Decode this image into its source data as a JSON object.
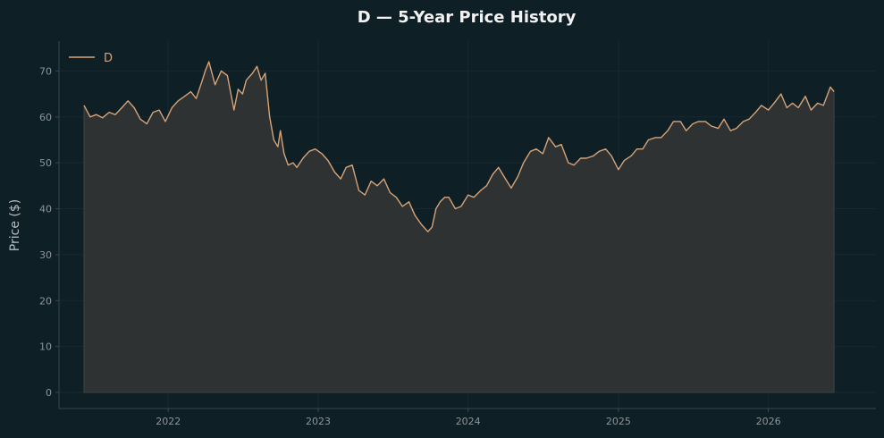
{
  "chart_data": {
    "type": "area",
    "title": "D — 5-Year Price History",
    "xlabel": "",
    "ylabel": "Price ($)",
    "x_ticks": [
      "2022",
      "2023",
      "2024",
      "2025",
      "2026"
    ],
    "y_ticks": [
      0,
      10,
      20,
      30,
      40,
      50,
      60,
      70
    ],
    "ylim": [
      -3.5,
      76.5
    ],
    "xlim": [
      "2021-04-10",
      "2026-09-20"
    ],
    "grid": true,
    "legend_position": "top-left",
    "colors": {
      "line": "#d6a377",
      "fill": "#2e3232",
      "background": "#0f1f26",
      "axis": "#3a474d"
    },
    "series": [
      {
        "name": "D",
        "x": [
          "2021-06-10",
          "2021-06-25",
          "2021-07-10",
          "2021-07-25",
          "2021-08-10",
          "2021-08-25",
          "2021-09-10",
          "2021-09-25",
          "2021-10-10",
          "2021-10-25",
          "2021-11-10",
          "2021-11-25",
          "2021-12-10",
          "2021-12-25",
          "2022-01-10",
          "2022-01-25",
          "2022-02-10",
          "2022-02-25",
          "2022-03-10",
          "2022-03-25",
          "2022-04-01",
          "2022-04-10",
          "2022-04-25",
          "2022-05-10",
          "2022-05-25",
          "2022-06-10",
          "2022-06-20",
          "2022-07-01",
          "2022-07-10",
          "2022-07-25",
          "2022-08-05",
          "2022-08-15",
          "2022-08-25",
          "2022-09-05",
          "2022-09-15",
          "2022-09-25",
          "2022-10-01",
          "2022-10-10",
          "2022-10-20",
          "2022-11-01",
          "2022-11-10",
          "2022-11-25",
          "2022-12-10",
          "2022-12-25",
          "2023-01-10",
          "2023-01-25",
          "2023-02-10",
          "2023-02-25",
          "2023-03-10",
          "2023-03-25",
          "2023-04-10",
          "2023-04-25",
          "2023-05-10",
          "2023-05-25",
          "2023-06-10",
          "2023-06-25",
          "2023-07-10",
          "2023-07-25",
          "2023-08-10",
          "2023-08-25",
          "2023-09-10",
          "2023-09-25",
          "2023-10-05",
          "2023-10-15",
          "2023-10-25",
          "2023-11-05",
          "2023-11-15",
          "2023-12-01",
          "2023-12-15",
          "2024-01-01",
          "2024-01-15",
          "2024-02-01",
          "2024-02-15",
          "2024-03-01",
          "2024-03-15",
          "2024-04-01",
          "2024-04-15",
          "2024-05-01",
          "2024-05-15",
          "2024-06-01",
          "2024-06-15",
          "2024-07-01",
          "2024-07-15",
          "2024-08-01",
          "2024-08-15",
          "2024-09-01",
          "2024-09-15",
          "2024-10-01",
          "2024-10-15",
          "2024-11-01",
          "2024-11-15",
          "2024-12-01",
          "2024-12-15",
          "2025-01-01",
          "2025-01-15",
          "2025-02-01",
          "2025-02-15",
          "2025-03-01",
          "2025-03-15",
          "2025-04-01",
          "2025-04-15",
          "2025-05-01",
          "2025-05-15",
          "2025-06-01",
          "2025-06-15",
          "2025-07-01",
          "2025-07-15",
          "2025-08-01",
          "2025-08-15",
          "2025-09-01",
          "2025-09-15",
          "2025-10-01",
          "2025-10-15",
          "2025-11-01",
          "2025-11-15",
          "2025-12-01",
          "2025-12-15",
          "2026-01-01",
          "2026-01-15",
          "2026-02-01",
          "2026-02-15",
          "2026-03-01",
          "2026-03-15",
          "2026-04-01",
          "2026-04-15",
          "2026-05-01",
          "2026-05-15",
          "2026-06-01",
          "2026-06-10"
        ],
        "y": [
          62.5,
          60.0,
          60.5,
          59.8,
          61.0,
          60.5,
          62.0,
          63.5,
          62.0,
          59.5,
          58.5,
          61.0,
          61.5,
          59.0,
          62.0,
          63.5,
          64.5,
          65.5,
          64.0,
          68.0,
          70.0,
          72.0,
          67.0,
          70.0,
          69.0,
          61.5,
          66.0,
          65.0,
          68.0,
          69.5,
          71.0,
          68.0,
          69.5,
          60.0,
          55.0,
          53.5,
          57.0,
          52.0,
          49.5,
          50.0,
          49.0,
          51.0,
          52.5,
          53.0,
          52.0,
          50.5,
          48.0,
          46.5,
          49.0,
          49.5,
          44.0,
          43.0,
          46.0,
          45.0,
          46.5,
          43.5,
          42.5,
          40.5,
          41.5,
          38.5,
          36.5,
          35.0,
          36.0,
          40.0,
          41.5,
          42.5,
          42.5,
          40.0,
          40.5,
          43.0,
          42.5,
          44.0,
          45.0,
          47.5,
          49.0,
          46.5,
          44.5,
          47.0,
          50.0,
          52.5,
          53.0,
          52.0,
          55.5,
          53.5,
          54.0,
          50.0,
          49.5,
          51.0,
          51.0,
          51.5,
          52.5,
          53.0,
          51.5,
          48.5,
          50.5,
          51.5,
          53.0,
          53.0,
          55.0,
          55.5,
          55.5,
          57.0,
          59.0,
          59.0,
          57.0,
          58.5,
          59.0,
          59.0,
          58.0,
          57.5,
          59.5,
          57.0,
          57.5,
          59.0,
          59.5,
          61.0,
          62.5,
          61.5,
          63.0,
          65.0,
          62.0,
          63.0,
          62.0,
          64.5,
          61.5,
          63.0,
          62.5,
          66.5,
          65.5
        ]
      }
    ]
  }
}
